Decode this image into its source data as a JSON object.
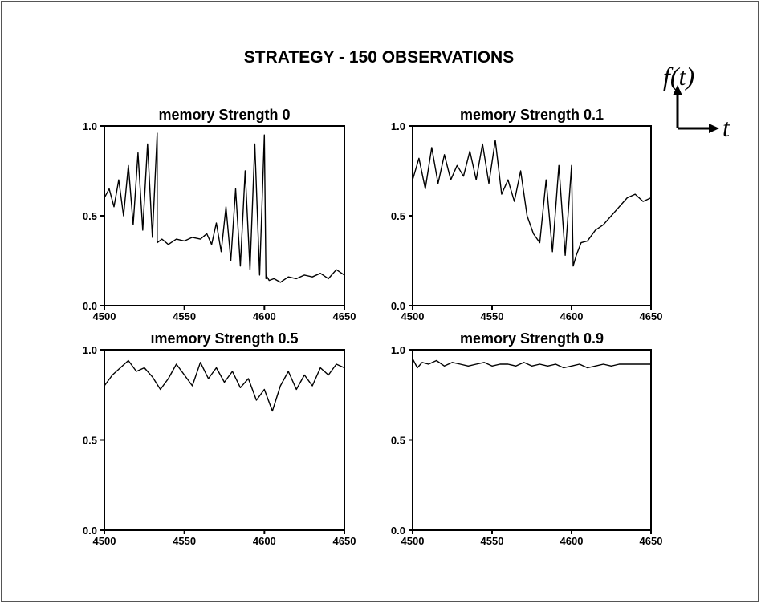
{
  "title": "STRATEGY - 150 OBSERVATIONS",
  "axis_glyph": {
    "y_label": "f(t)",
    "x_label": "t"
  },
  "chart_data": [
    {
      "type": "line",
      "title": "memory Strength 0",
      "xlim": [
        4500,
        4650
      ],
      "ylim": [
        0,
        1
      ],
      "xticks": [
        "4500",
        "4550",
        "4600",
        "4650"
      ],
      "yticks": [
        "0.0",
        "0.5",
        "1.0"
      ],
      "series": [
        {
          "x": [
            4500,
            4503,
            4506,
            4509,
            4512,
            4515,
            4518,
            4521,
            4524,
            4527,
            4530,
            4533,
            4533,
            4536,
            4540,
            4545,
            4550,
            4555,
            4560,
            4564,
            4567,
            4570,
            4573,
            4576,
            4579,
            4582,
            4585,
            4588,
            4591,
            4594,
            4597,
            4600,
            4601,
            4601,
            4603,
            4606,
            4610,
            4615,
            4620,
            4625,
            4630,
            4635,
            4640,
            4645,
            4650
          ],
          "y": [
            0.6,
            0.65,
            0.55,
            0.7,
            0.5,
            0.78,
            0.45,
            0.85,
            0.42,
            0.9,
            0.38,
            0.96,
            0.35,
            0.37,
            0.34,
            0.37,
            0.36,
            0.38,
            0.37,
            0.4,
            0.34,
            0.46,
            0.3,
            0.55,
            0.25,
            0.65,
            0.22,
            0.75,
            0.2,
            0.9,
            0.17,
            0.95,
            0.15,
            0.17,
            0.14,
            0.15,
            0.13,
            0.16,
            0.15,
            0.17,
            0.16,
            0.18,
            0.15,
            0.2,
            0.17
          ]
        }
      ]
    },
    {
      "type": "line",
      "title": "memory Strength 0.1",
      "xlim": [
        4500,
        4650
      ],
      "ylim": [
        0,
        1
      ],
      "xticks": [
        "4500",
        "4550",
        "4600",
        "4650"
      ],
      "yticks": [
        "0.0",
        "0.5",
        "1.0"
      ],
      "series": [
        {
          "x": [
            4500,
            4504,
            4508,
            4512,
            4516,
            4520,
            4524,
            4528,
            4532,
            4536,
            4540,
            4544,
            4548,
            4552,
            4556,
            4560,
            4564,
            4568,
            4572,
            4576,
            4580,
            4584,
            4588,
            4592,
            4596,
            4600,
            4601,
            4603,
            4606,
            4610,
            4615,
            4620,
            4625,
            4630,
            4635,
            4640,
            4645,
            4650
          ],
          "y": [
            0.7,
            0.82,
            0.65,
            0.88,
            0.68,
            0.84,
            0.7,
            0.78,
            0.72,
            0.86,
            0.7,
            0.9,
            0.68,
            0.92,
            0.62,
            0.7,
            0.58,
            0.75,
            0.5,
            0.4,
            0.35,
            0.7,
            0.3,
            0.78,
            0.28,
            0.78,
            0.22,
            0.28,
            0.35,
            0.36,
            0.42,
            0.45,
            0.5,
            0.55,
            0.6,
            0.62,
            0.58,
            0.6
          ]
        }
      ]
    },
    {
      "type": "line",
      "title": "ımemory Strength 0.5",
      "xlim": [
        4500,
        4650
      ],
      "ylim": [
        0,
        1
      ],
      "xticks": [
        "4500",
        "4550",
        "4600",
        "4650"
      ],
      "yticks": [
        "0.0",
        "0.5",
        "1.0"
      ],
      "series": [
        {
          "x": [
            4500,
            4505,
            4510,
            4515,
            4520,
            4525,
            4530,
            4535,
            4540,
            4545,
            4550,
            4555,
            4560,
            4565,
            4570,
            4575,
            4580,
            4585,
            4590,
            4595,
            4600,
            4605,
            4610,
            4615,
            4620,
            4625,
            4630,
            4635,
            4640,
            4645,
            4650
          ],
          "y": [
            0.8,
            0.86,
            0.9,
            0.94,
            0.88,
            0.9,
            0.85,
            0.78,
            0.84,
            0.92,
            0.86,
            0.8,
            0.93,
            0.84,
            0.9,
            0.82,
            0.88,
            0.79,
            0.84,
            0.72,
            0.78,
            0.66,
            0.8,
            0.88,
            0.78,
            0.86,
            0.8,
            0.9,
            0.86,
            0.92,
            0.9
          ]
        }
      ]
    },
    {
      "type": "line",
      "title": "memory Strength 0.9",
      "xlim": [
        4500,
        4650
      ],
      "ylim": [
        0,
        1
      ],
      "xticks": [
        "4500",
        "4550",
        "4600",
        "4650"
      ],
      "yticks": [
        "0.0",
        "0.5",
        "1.0"
      ],
      "series": [
        {
          "x": [
            4500,
            4503,
            4506,
            4510,
            4515,
            4520,
            4525,
            4530,
            4535,
            4540,
            4545,
            4550,
            4555,
            4560,
            4565,
            4570,
            4575,
            4580,
            4585,
            4590,
            4595,
            4600,
            4605,
            4610,
            4615,
            4620,
            4625,
            4630,
            4635,
            4640,
            4645,
            4650
          ],
          "y": [
            0.95,
            0.9,
            0.93,
            0.92,
            0.94,
            0.91,
            0.93,
            0.92,
            0.91,
            0.92,
            0.93,
            0.91,
            0.92,
            0.92,
            0.91,
            0.93,
            0.91,
            0.92,
            0.91,
            0.92,
            0.9,
            0.91,
            0.92,
            0.9,
            0.91,
            0.92,
            0.91,
            0.92,
            0.92,
            0.92,
            0.92,
            0.92
          ]
        }
      ]
    }
  ]
}
